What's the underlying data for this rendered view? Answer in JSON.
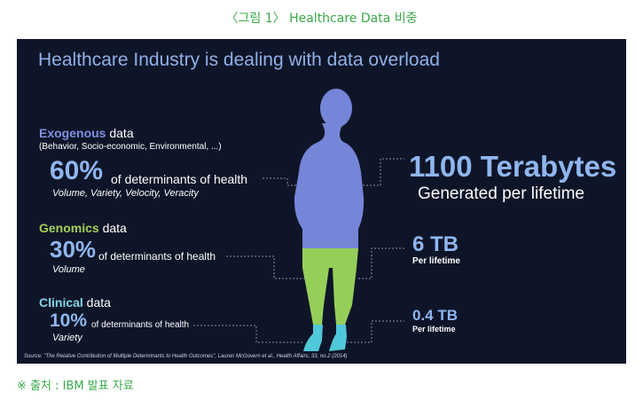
{
  "caption": "〈그림 1〉 Healthcare Data 비중",
  "slide": {
    "title": "Healthcare Industry is dealing with data overload",
    "exogenous": {
      "name": "Exogenous",
      "suffix": " data",
      "note": "(Behavior, Socio-economic, Environmental, ...)",
      "percent": "60%",
      "determinants": "of determinants of health",
      "descriptor": "Volume, Variety, Velocity, Veracity",
      "color": "#7f8de0"
    },
    "genomics": {
      "name": "Genomics",
      "suffix": " data",
      "percent": "30%",
      "determinants": "of determinants of health",
      "descriptor": "Volume",
      "color": "#a2d15b"
    },
    "clinical": {
      "name": "Clinical",
      "suffix": " data",
      "percent": "10%",
      "determinants": "of determinants of health",
      "descriptor": "Variety",
      "color": "#7fd6e8"
    },
    "right_values": {
      "exogenous_value": "1100 Terabytes",
      "exogenous_label": "Generated per lifetime",
      "genomics_value": "6 TB",
      "genomics_label": "Per lifetime",
      "clinical_value": "0.4 TB",
      "clinical_label": "Per lifetime"
    },
    "source": "Source: \"The Relative Contribution of Multiple Determinants to Health Outcomes\", Lauren McGovern et al., Health Affairs, 33, no.2 (2014)"
  },
  "footer": "※ 출처 : IBM 발표 자료"
}
